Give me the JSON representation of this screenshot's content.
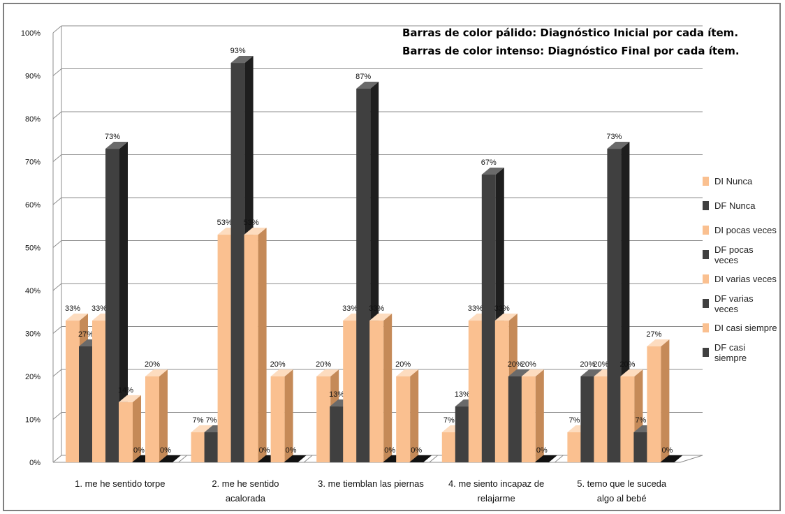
{
  "annotations": [
    "Barras de color pálido: Diagnóstico Inicial por cada ítem.",
    "Barras de color intenso: Diagnóstico Final por cada ítem."
  ],
  "colors": {
    "pale_front": "#fac090",
    "pale_side": "#c58a58",
    "pale_top": "#fddcbf",
    "dark_front": "#404040",
    "dark_side": "#1e1e1e",
    "dark_top": "#6a6a6a",
    "grid": "#8c8c8c"
  },
  "chart_data": {
    "type": "bar",
    "categories": [
      [
        "1. me he sentido torpe"
      ],
      [
        "2. me he sentido",
        "acalorada"
      ],
      [
        "3. me tiemblan las piernas"
      ],
      [
        "4. me siento incapaz de",
        "relajarme"
      ],
      [
        "5.  temo que le suceda",
        "algo al bebé"
      ]
    ],
    "series": [
      {
        "name": "DI Nunca",
        "tone": "pale",
        "values": [
          33,
          7,
          20,
          7,
          7
        ],
        "labels": [
          "33%",
          "7%",
          "20%",
          "7%",
          "7%"
        ]
      },
      {
        "name": "DF Nunca",
        "tone": "dark",
        "values": [
          27,
          7,
          13,
          13,
          20
        ],
        "labels": [
          "27%",
          "7%",
          "13%",
          "13%",
          "20%"
        ]
      },
      {
        "name": "DI pocas veces",
        "tone": "pale",
        "values": [
          33,
          53,
          33,
          33,
          20
        ],
        "labels": [
          "33%",
          "53%",
          "33%",
          "33%",
          "20%"
        ]
      },
      {
        "name": "DF pocas veces",
        "tone": "dark",
        "values": [
          73,
          93,
          87,
          67,
          73
        ],
        "labels": [
          "73%",
          "93%",
          "87%",
          "67%",
          "73%"
        ]
      },
      {
        "name": "DI varias veces",
        "tone": "pale",
        "values": [
          14,
          53,
          33,
          33,
          20
        ],
        "labels": [
          "14%",
          "53%",
          "33%",
          "33%",
          "20%"
        ]
      },
      {
        "name": "DF varias veces",
        "tone": "dark",
        "values": [
          0,
          0,
          0,
          20,
          7
        ],
        "labels": [
          "0%",
          "0%",
          "0%",
          "20%",
          "7%"
        ]
      },
      {
        "name": "DI casi siempre",
        "tone": "pale",
        "values": [
          20,
          20,
          20,
          20,
          27
        ],
        "labels": [
          "20%",
          "20%",
          "20%",
          "20%",
          "27%"
        ]
      },
      {
        "name": "DF casi siempre",
        "tone": "dark",
        "values": [
          0,
          0,
          0,
          0,
          0
        ],
        "labels": [
          "0%",
          "0%",
          "0%",
          "0%",
          "0%"
        ]
      }
    ],
    "yticks": [
      "0%",
      "10%",
      "20%",
      "30%",
      "40%",
      "50%",
      "60%",
      "70%",
      "80%",
      "90%",
      "100%"
    ],
    "ylim": [
      0,
      100
    ],
    "legend": "right",
    "grid": true,
    "style": "3d-clustered-column"
  }
}
